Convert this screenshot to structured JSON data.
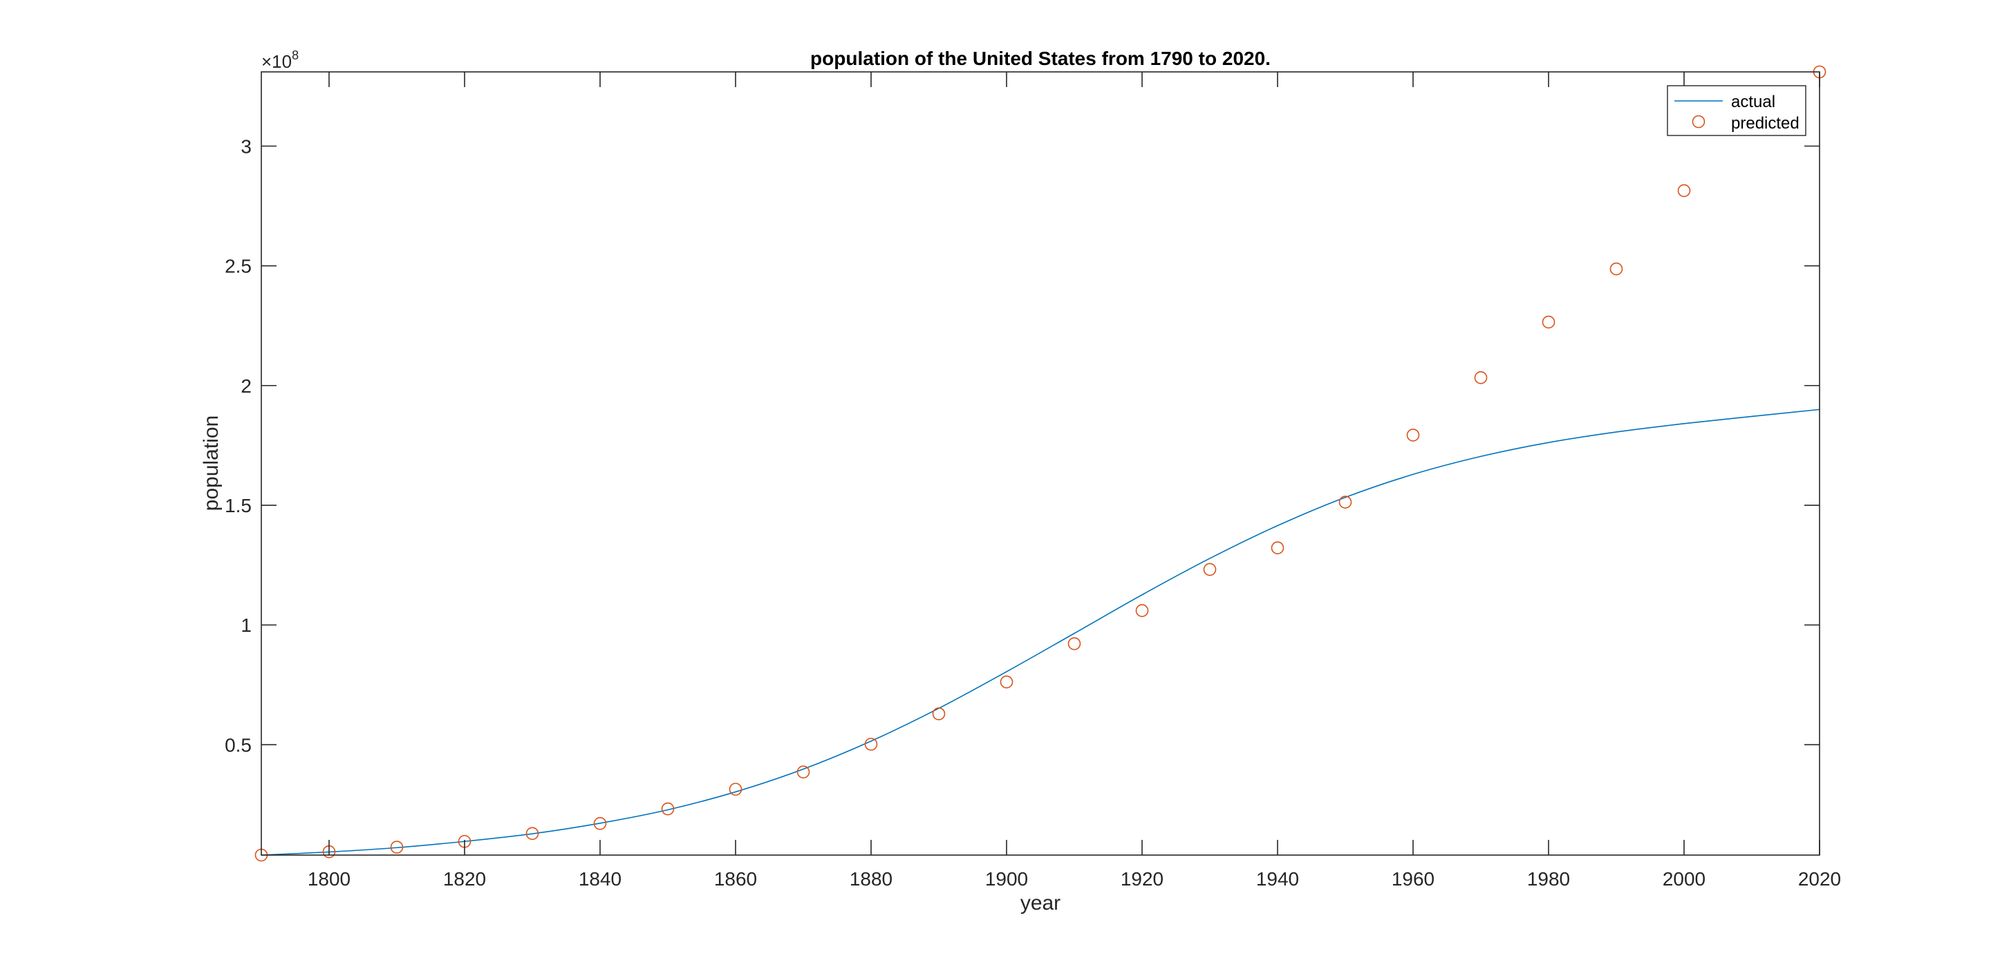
{
  "chart_data": {
    "type": "line",
    "title": "population of the United States from 1790 to 2020.",
    "xlabel": "year",
    "ylabel": "population",
    "y_exponent_base": "×10",
    "y_exponent_power": "8",
    "xlim": [
      1790,
      2020
    ],
    "ylim": [
      3900000,
      331000000
    ],
    "x_ticks": [
      1800,
      1820,
      1840,
      1860,
      1880,
      1900,
      1920,
      1940,
      1960,
      1980,
      2000,
      2020
    ],
    "x_tick_labels": [
      "1800",
      "1820",
      "1840",
      "1860",
      "1880",
      "1900",
      "1920",
      "1940",
      "1960",
      "1980",
      "2000",
      "2020"
    ],
    "y_ticks": [
      50000000,
      100000000,
      150000000,
      200000000,
      250000000,
      300000000
    ],
    "y_tick_labels": [
      "0.5",
      "1",
      "1.5",
      "2",
      "2.5",
      "3"
    ],
    "grid": false,
    "legend_position": "top-right",
    "series": [
      {
        "name": "actual",
        "style": "line",
        "color": "#0072BD",
        "x": [
          1790,
          1800,
          1810,
          1820,
          1830,
          1840,
          1850,
          1860,
          1870,
          1880,
          1890,
          1900,
          1910,
          1920,
          1930,
          1940,
          1950,
          1960,
          1970,
          1980,
          1990,
          2000,
          2010,
          2020
        ],
        "values": [
          3900000,
          5200000,
          7000000,
          9600000,
          12800000,
          17200000,
          22800000,
          30300000,
          39800000,
          51500000,
          65200000,
          80500000,
          96500000,
          112600000,
          127800000,
          141500000,
          153300000,
          162900000,
          170400000,
          176200000,
          180600000,
          184100000,
          187100000,
          190000000
        ]
      },
      {
        "name": "predicted",
        "style": "marker",
        "marker": "circle",
        "color": "#D95319",
        "x": [
          1790,
          1800,
          1810,
          1820,
          1830,
          1840,
          1850,
          1860,
          1870,
          1880,
          1890,
          1900,
          1910,
          1920,
          1930,
          1940,
          1950,
          1960,
          1970,
          1980,
          1990,
          2000,
          2010,
          2020
        ],
        "values": [
          3900000,
          5300000,
          7200000,
          9600000,
          12900000,
          17100000,
          23200000,
          31400000,
          38600000,
          50200000,
          62900000,
          76200000,
          92200000,
          106000000,
          123200000,
          132200000,
          151300000,
          179300000,
          203300000,
          226500000,
          248700000,
          281400000,
          308700000,
          331000000
        ]
      }
    ]
  }
}
